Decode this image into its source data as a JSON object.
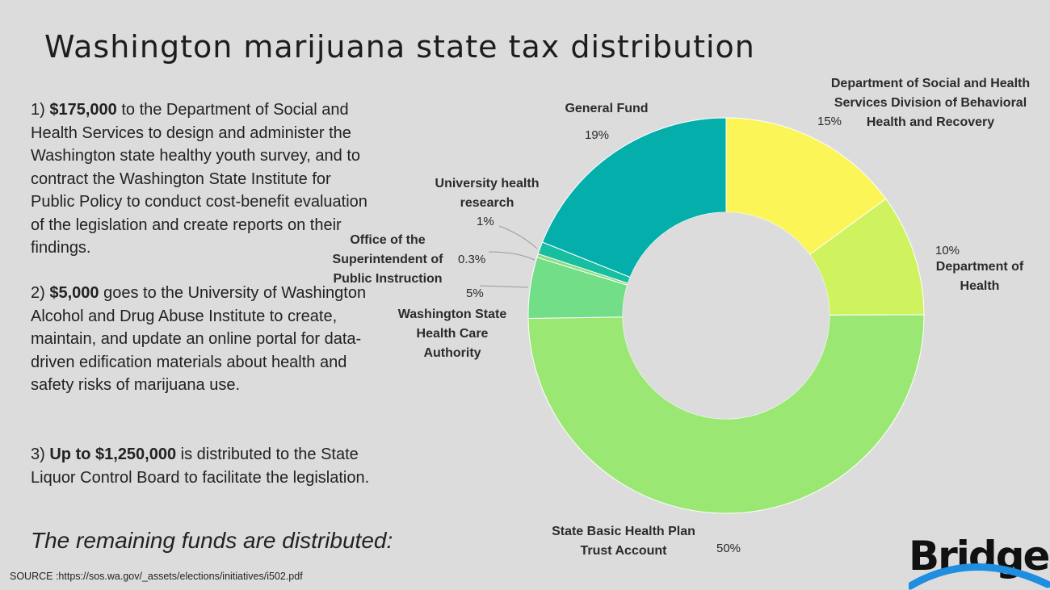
{
  "title": "Washington marijuana state tax distribution",
  "paragraphs": [
    {
      "num": "1)",
      "amount": "$175,000",
      "rest": " to the Department of Social and Health Services to design and administer the Washington state healthy youth survey, and to contract the Washington State Institute for Public Policy to conduct cost-benefit evaluation of the legislation and create reports on their findings."
    },
    {
      "num": "2)",
      "amount": "$5,000",
      "rest": " goes to the University of Washington Alcohol and Drug Abuse Institute to create, maintain, and update an online portal for data-driven edification materials about health and safety risks of marijuana use."
    },
    {
      "num": "3)",
      "amount": "Up to $1,250,000",
      "rest": " is distributed to the State Liquor Control Board to facilitate the legislation."
    }
  ],
  "remaining": "The remaining funds are distributed:",
  "source": "SOURCE :https://sos.wa.gov/_assets/elections/initiatives/i502.pdf",
  "logo": "Bridge",
  "chart_data": {
    "type": "pie",
    "donut": true,
    "slices": [
      {
        "label": "Department of Social and Health Services Division of Behavioral Health and Recovery",
        "value": 15,
        "display": "15%",
        "color": "#fbf557"
      },
      {
        "label": "Department of Health",
        "value": 10,
        "display": "10%",
        "color": "#cff25f"
      },
      {
        "label": "State Basic Health Plan Trust Account",
        "value": 50,
        "display": "50%",
        "color": "#9ae873"
      },
      {
        "label": "Washington State Health Care Authority",
        "value": 5,
        "display": "5%",
        "color": "#72de88"
      },
      {
        "label": "Office of the Superintendent of Public Instruction",
        "value": 0.3,
        "display": "0.3%",
        "color": "#8edc80"
      },
      {
        "label": "University health research",
        "value": 1,
        "display": "1%",
        "color": "#17bea0"
      },
      {
        "label": "General Fund",
        "value": 19,
        "display": "19%",
        "color": "#03aeab"
      }
    ]
  }
}
